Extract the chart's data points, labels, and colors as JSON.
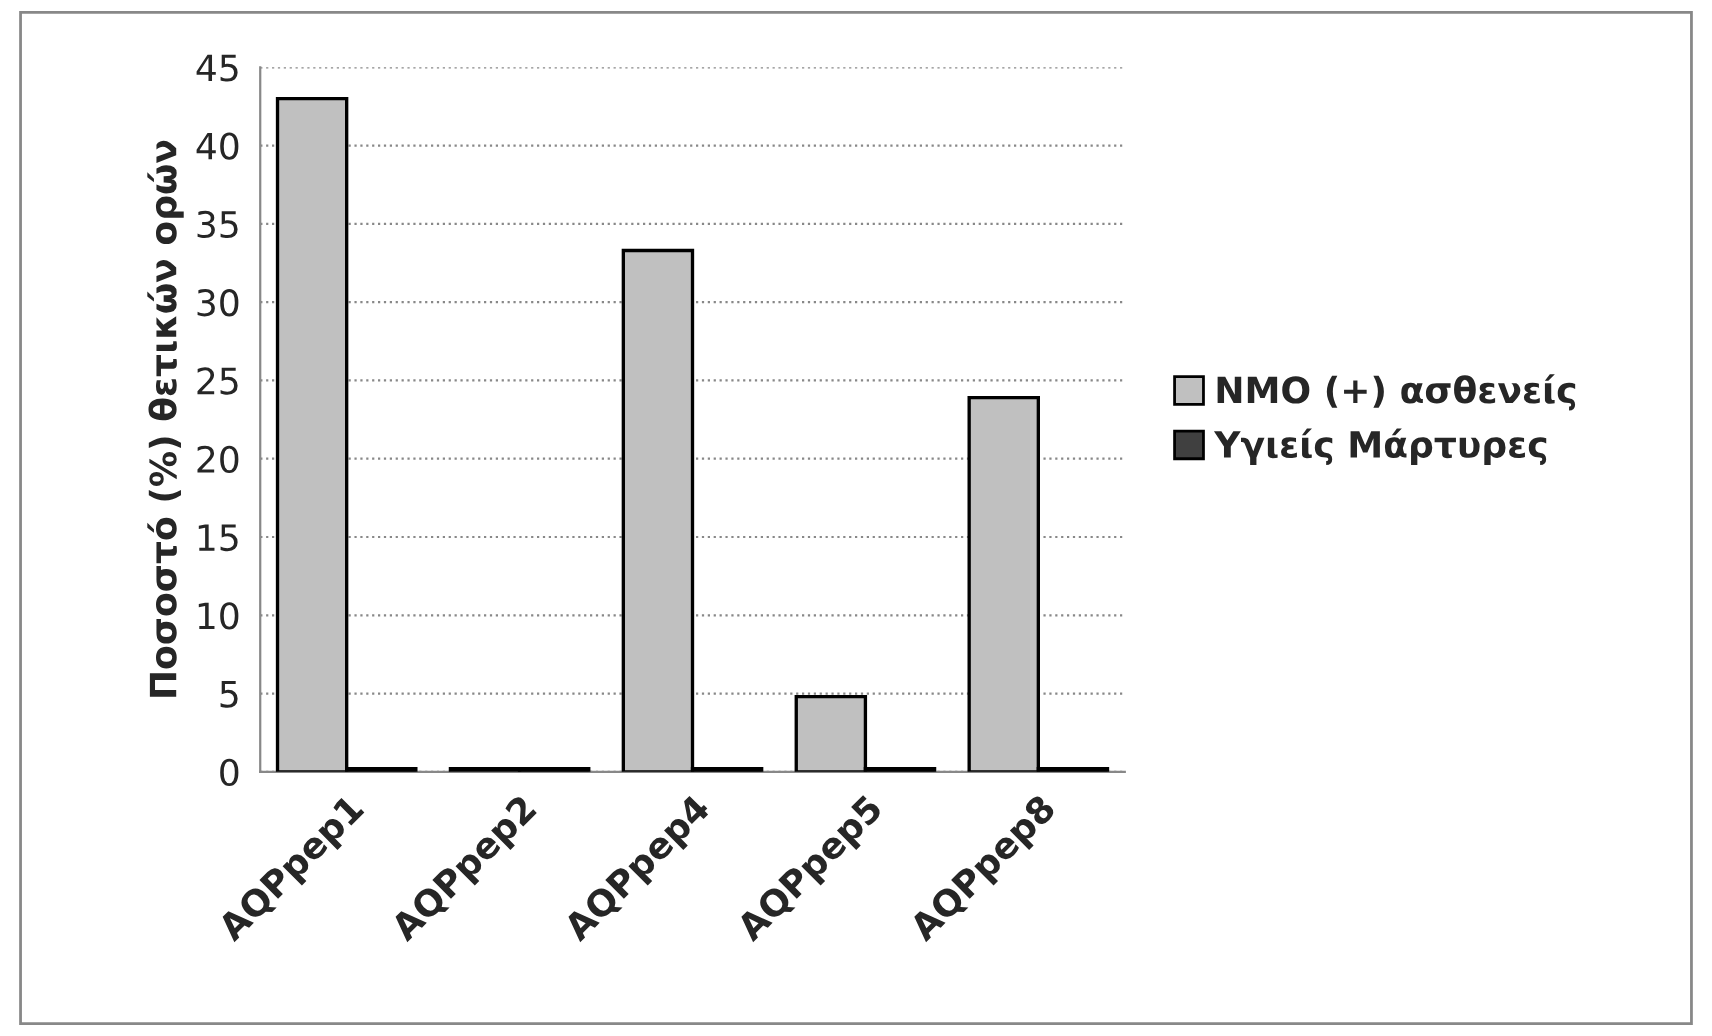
{
  "chart_data": {
    "type": "bar",
    "ylabel": "Ποσοστό (%) θετικών ορών",
    "categories": [
      "AQPpep1",
      "AQPpep2",
      "AQPpep4",
      "AQPpep5",
      "AQPpep8"
    ],
    "series": [
      {
        "name": "NMO (+) ασθενείς",
        "color": "#c0c0c0",
        "values": [
          43,
          0.2,
          33.3,
          4.8,
          23.9
        ]
      },
      {
        "name": "Υγιείς Μάρτυρες",
        "color": "#404040",
        "values": [
          0.2,
          0.2,
          0.2,
          0.2,
          0.2
        ]
      }
    ],
    "ylim": [
      0,
      45
    ],
    "yticks": [
      0,
      5,
      10,
      15,
      20,
      25,
      30,
      35,
      40,
      45
    ],
    "grid": "y",
    "legend": "right"
  }
}
